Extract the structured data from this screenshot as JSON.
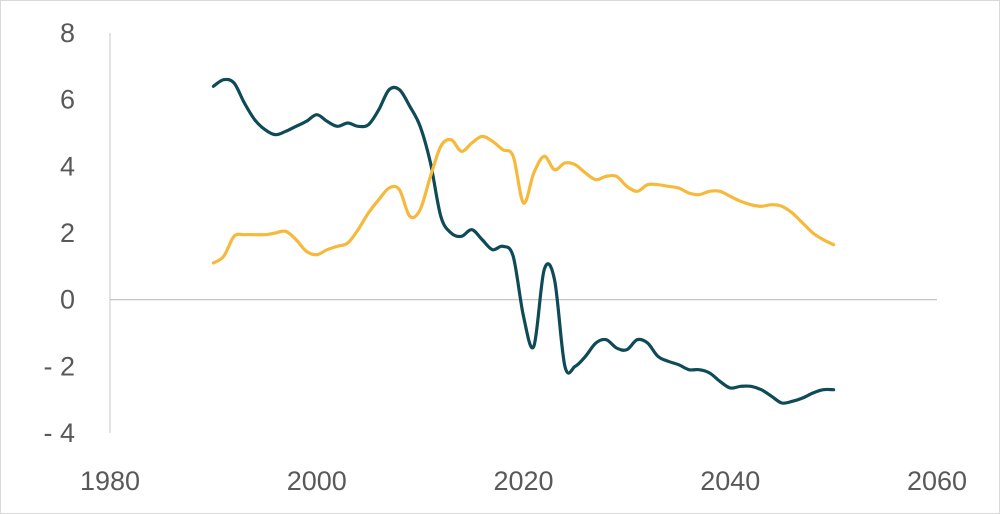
{
  "chart_data": {
    "type": "line",
    "title": "",
    "xlabel": "",
    "ylabel": "",
    "xlim": [
      1980,
      2060
    ],
    "ylim": [
      -4,
      8
    ],
    "grid": false,
    "legend": "none",
    "x_ticks": [
      {
        "value": 1980,
        "label": "1980"
      },
      {
        "value": 2000,
        "label": "2000"
      },
      {
        "value": 2020,
        "label": "2020"
      },
      {
        "value": 2040,
        "label": "2040"
      },
      {
        "value": 2060,
        "label": "2060"
      }
    ],
    "y_ticks": [
      {
        "value": 8,
        "label": "8"
      },
      {
        "value": 6,
        "label": "6"
      },
      {
        "value": 4,
        "label": "4"
      },
      {
        "value": 2,
        "label": "2"
      },
      {
        "value": 0,
        "label": "0"
      },
      {
        "value": -2,
        "label": "-   2"
      },
      {
        "value": -4,
        "label": "-   4"
      }
    ],
    "series": [
      {
        "color": "#0e4a57",
        "points": [
          [
            1990,
            6.4
          ],
          [
            1991,
            6.6
          ],
          [
            1992,
            6.5
          ],
          [
            1993,
            5.9
          ],
          [
            1994,
            5.4
          ],
          [
            1995,
            5.1
          ],
          [
            1996,
            4.95
          ],
          [
            1997,
            5.05
          ],
          [
            1998,
            5.2
          ],
          [
            1999,
            5.35
          ],
          [
            2000,
            5.55
          ],
          [
            2001,
            5.35
          ],
          [
            2002,
            5.2
          ],
          [
            2003,
            5.3
          ],
          [
            2004,
            5.2
          ],
          [
            2005,
            5.25
          ],
          [
            2006,
            5.7
          ],
          [
            2007,
            6.3
          ],
          [
            2008,
            6.3
          ],
          [
            2009,
            5.8
          ],
          [
            2010,
            5.2
          ],
          [
            2011,
            4.1
          ],
          [
            2012,
            2.5
          ],
          [
            2013,
            2.0
          ],
          [
            2014,
            1.9
          ],
          [
            2015,
            2.1
          ],
          [
            2016,
            1.8
          ],
          [
            2017,
            1.5
          ],
          [
            2018,
            1.6
          ],
          [
            2019,
            1.3
          ],
          [
            2020,
            -0.5
          ],
          [
            2021,
            -1.4
          ],
          [
            2022,
            0.9
          ],
          [
            2023,
            0.6
          ],
          [
            2024,
            -2.0
          ],
          [
            2025,
            -2.0
          ],
          [
            2026,
            -1.7
          ],
          [
            2027,
            -1.3
          ],
          [
            2028,
            -1.2
          ],
          [
            2029,
            -1.45
          ],
          [
            2030,
            -1.5
          ],
          [
            2031,
            -1.2
          ],
          [
            2032,
            -1.3
          ],
          [
            2033,
            -1.7
          ],
          [
            2034,
            -1.85
          ],
          [
            2035,
            -1.95
          ],
          [
            2036,
            -2.1
          ],
          [
            2037,
            -2.1
          ],
          [
            2038,
            -2.2
          ],
          [
            2039,
            -2.45
          ],
          [
            2040,
            -2.65
          ],
          [
            2041,
            -2.6
          ],
          [
            2042,
            -2.6
          ],
          [
            2043,
            -2.7
          ],
          [
            2044,
            -2.9
          ],
          [
            2045,
            -3.1
          ],
          [
            2046,
            -3.05
          ],
          [
            2047,
            -2.95
          ],
          [
            2048,
            -2.8
          ],
          [
            2049,
            -2.7
          ],
          [
            2050,
            -2.7
          ]
        ]
      },
      {
        "color": "#f6b93b",
        "points": [
          [
            1990,
            1.1
          ],
          [
            1991,
            1.3
          ],
          [
            1992,
            1.9
          ],
          [
            1993,
            1.95
          ],
          [
            1994,
            1.95
          ],
          [
            1995,
            1.95
          ],
          [
            1996,
            2.0
          ],
          [
            1997,
            2.05
          ],
          [
            1998,
            1.8
          ],
          [
            1999,
            1.45
          ],
          [
            2000,
            1.35
          ],
          [
            2001,
            1.5
          ],
          [
            2002,
            1.6
          ],
          [
            2003,
            1.7
          ],
          [
            2004,
            2.1
          ],
          [
            2005,
            2.6
          ],
          [
            2006,
            3.0
          ],
          [
            2007,
            3.35
          ],
          [
            2008,
            3.3
          ],
          [
            2009,
            2.5
          ],
          [
            2010,
            2.7
          ],
          [
            2011,
            3.7
          ],
          [
            2012,
            4.6
          ],
          [
            2013,
            4.8
          ],
          [
            2014,
            4.45
          ],
          [
            2015,
            4.7
          ],
          [
            2016,
            4.9
          ],
          [
            2017,
            4.75
          ],
          [
            2018,
            4.5
          ],
          [
            2019,
            4.3
          ],
          [
            2020,
            2.9
          ],
          [
            2021,
            3.8
          ],
          [
            2022,
            4.3
          ],
          [
            2023,
            3.9
          ],
          [
            2024,
            4.1
          ],
          [
            2025,
            4.05
          ],
          [
            2026,
            3.8
          ],
          [
            2027,
            3.6
          ],
          [
            2028,
            3.7
          ],
          [
            2029,
            3.7
          ],
          [
            2030,
            3.4
          ],
          [
            2031,
            3.25
          ],
          [
            2032,
            3.45
          ],
          [
            2033,
            3.45
          ],
          [
            2034,
            3.4
          ],
          [
            2035,
            3.35
          ],
          [
            2036,
            3.2
          ],
          [
            2037,
            3.15
          ],
          [
            2038,
            3.25
          ],
          [
            2039,
            3.25
          ],
          [
            2040,
            3.1
          ],
          [
            2041,
            2.95
          ],
          [
            2042,
            2.85
          ],
          [
            2043,
            2.8
          ],
          [
            2044,
            2.85
          ],
          [
            2045,
            2.8
          ],
          [
            2046,
            2.6
          ],
          [
            2047,
            2.3
          ],
          [
            2048,
            2.0
          ],
          [
            2049,
            1.8
          ],
          [
            2050,
            1.65
          ]
        ]
      }
    ]
  }
}
